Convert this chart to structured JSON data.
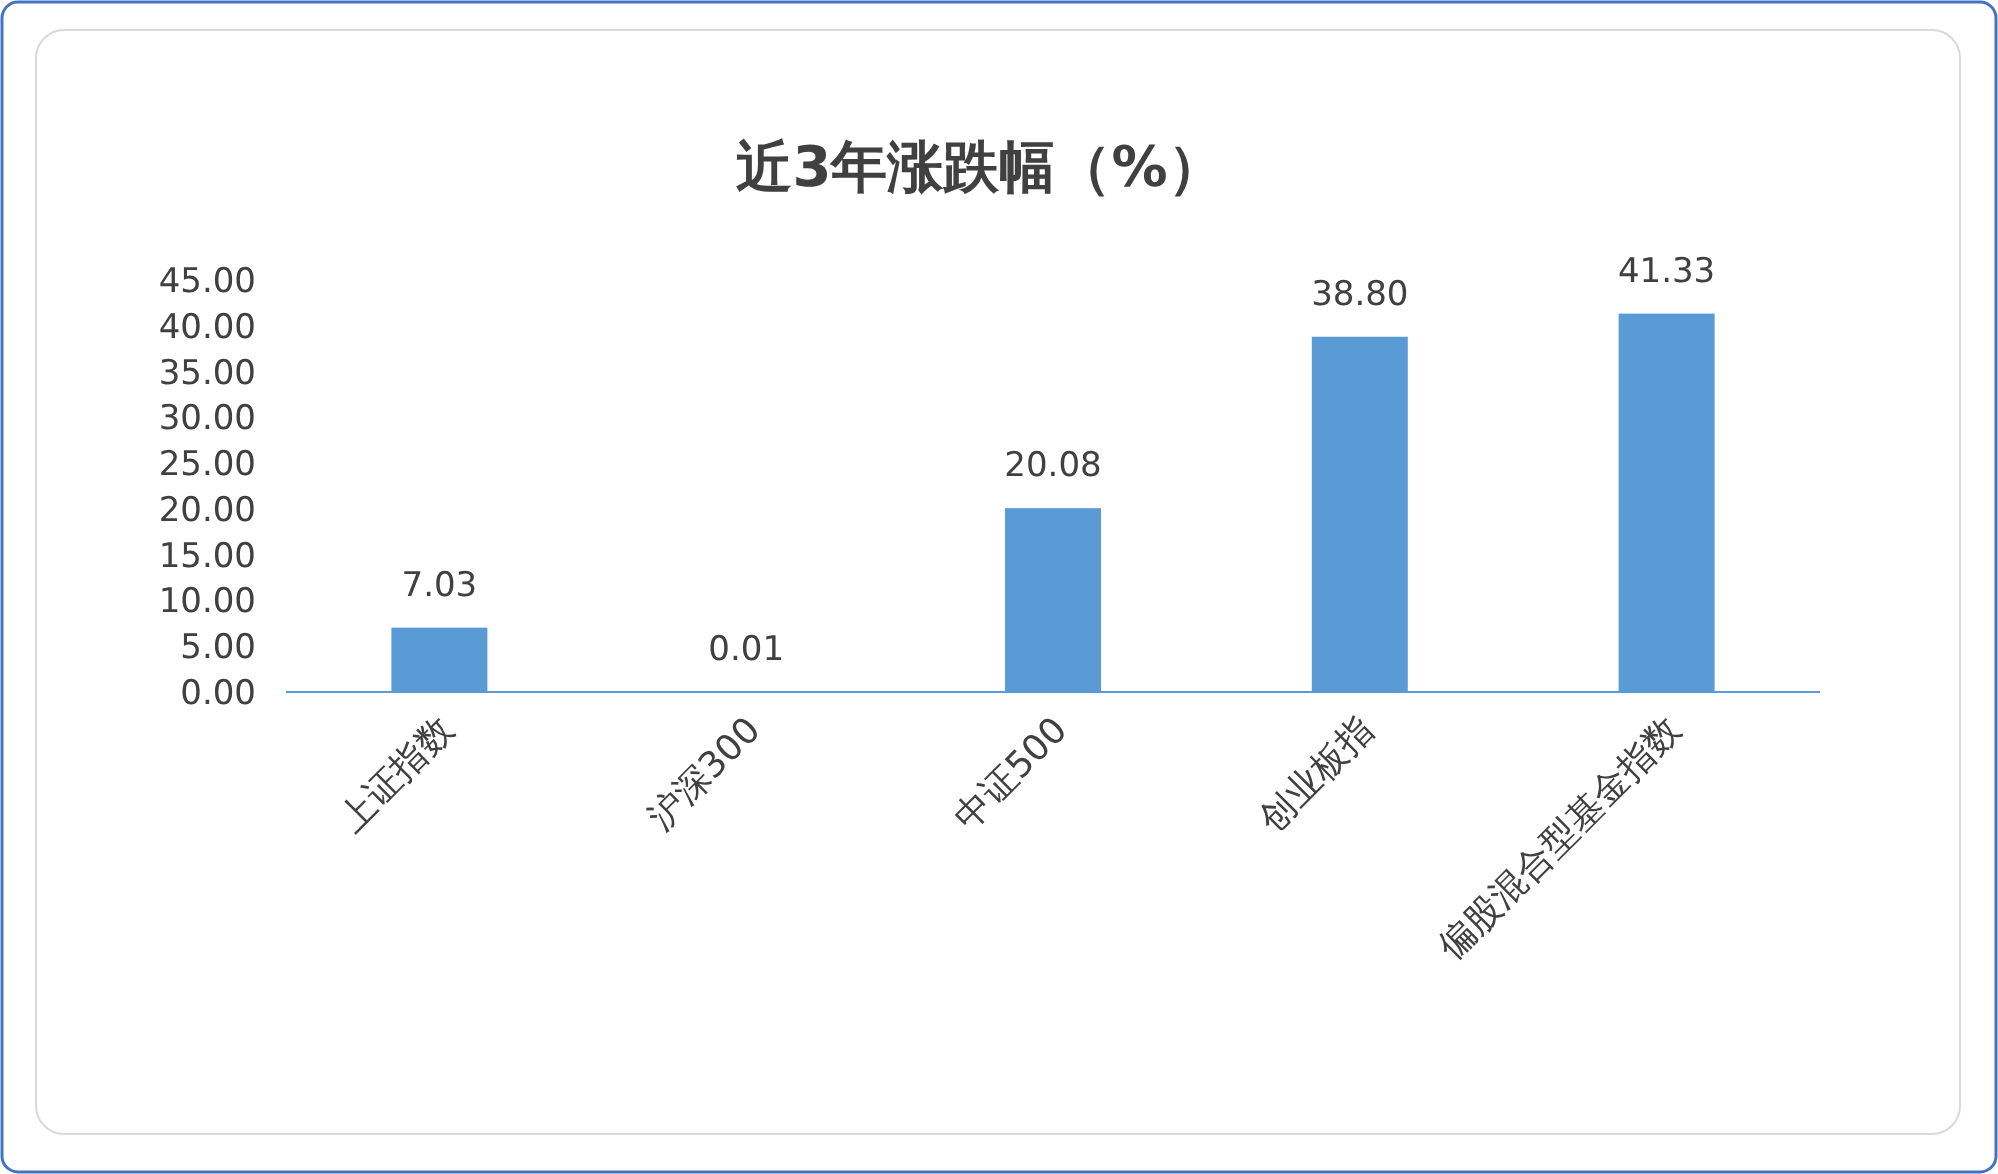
{
  "chart_data": {
    "type": "bar",
    "title": "近3年涨跌幅（%）",
    "categories": [
      "上证指数",
      "沪深300",
      "中证500",
      "创业板指",
      "偏股混合型基金指数"
    ],
    "values": [
      7.03,
      0.01,
      20.08,
      38.8,
      41.33
    ],
    "value_labels": [
      "7.03",
      "0.01",
      "20.08",
      "38.80",
      "41.33"
    ],
    "color": "#5b9bd5",
    "ylim": [
      0,
      45
    ],
    "yticks": [
      {
        "value": 0,
        "label": "0.00"
      },
      {
        "value": 5,
        "label": "5.00"
      },
      {
        "value": 10,
        "label": "10.00"
      },
      {
        "value": 15,
        "label": "15.00"
      },
      {
        "value": 20,
        "label": "20.00"
      },
      {
        "value": 25,
        "label": "25.00"
      },
      {
        "value": 30,
        "label": "30.00"
      },
      {
        "value": 35,
        "label": "35.00"
      },
      {
        "value": 40,
        "label": "40.00"
      },
      {
        "value": 45,
        "label": "45.00"
      }
    ]
  }
}
